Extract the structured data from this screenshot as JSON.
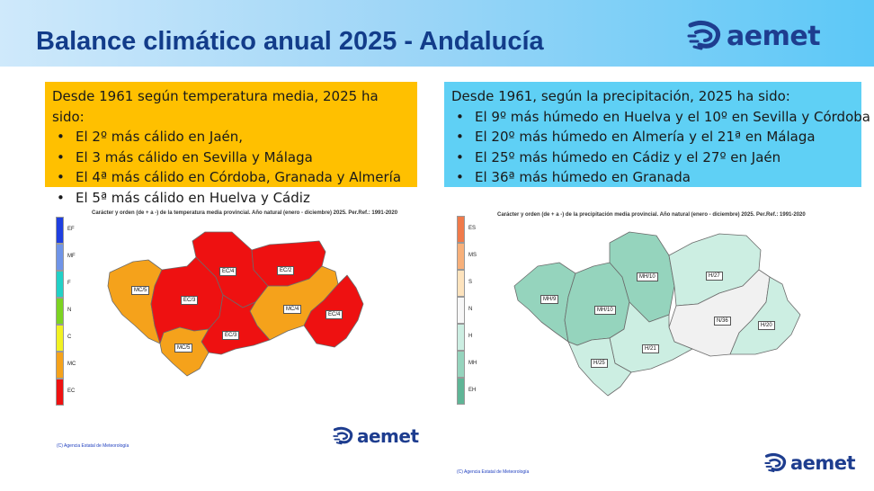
{
  "header": {
    "title": "Balance climático anual 2025 - Andalucía",
    "logo_text": "aemet"
  },
  "temperature_box": {
    "intro": "Desde 1961 según temperatura media, 2025 ha sido:",
    "items": [
      "El 2º más cálido en Jaén,",
      "El 3 más cálido en Sevilla y Málaga",
      "El 4ª más cálido en Córdoba, Granada y Almería",
      "El 5ª más cálido en Huelva y Cádiz"
    ],
    "bg_color": "#ffc000"
  },
  "precipitation_box": {
    "intro": "Desde 1961, según la precipitación, 2025 ha sido:",
    "items": [
      "El 9º más húmedo en Huelva y el 10º en Sevilla y Córdoba",
      "El 20º más húmedo en Almería y el 21ª en Málaga",
      "El 25º más húmedo en Cádiz y el 27º en Jaén",
      "El 36ª más húmedo en Granada"
    ],
    "bg_color": "#5fd0f5"
  },
  "temperature_map": {
    "title": "Carácter y orden (de + a -) de la temperatura media provincial. Año natural (enero - diciembre) 2025. Per.Ref.: 1991-2020",
    "legend": [
      {
        "code": "EF",
        "color": "#1f3fe0"
      },
      {
        "code": "MF",
        "color": "#6f94e8"
      },
      {
        "code": "F",
        "color": "#22d1c7"
      },
      {
        "code": "N",
        "color": "#7cd322"
      },
      {
        "code": "C",
        "color": "#f2f222"
      },
      {
        "code": "MC",
        "color": "#f5a21b"
      },
      {
        "code": "EC",
        "color": "#ee1111"
      }
    ],
    "provinces": {
      "huelva": {
        "label": "MC/5",
        "color": "#f5a21b"
      },
      "sevilla": {
        "label": "EC/3",
        "color": "#ee1111"
      },
      "cordoba": {
        "label": "EC/4",
        "color": "#ee1111"
      },
      "jaen": {
        "label": "EC/2",
        "color": "#ee1111"
      },
      "granada": {
        "label": "MC/4",
        "color": "#f5a21b"
      },
      "almeria": {
        "label": "EC/4",
        "color": "#ee1111"
      },
      "malaga": {
        "label": "EC/3",
        "color": "#ee1111"
      },
      "cadiz": {
        "label": "MC/5",
        "color": "#f5a21b"
      }
    },
    "credit": "(C) Agencia Estatal de Meteorología",
    "logo_text": "aemet"
  },
  "precipitation_map": {
    "title": "Carácter y orden (de + a -) de la precipitación media provincial. Año natural (enero - diciembre) 2025. Per.Ref.: 1991-2020",
    "legend": [
      {
        "code": "ES",
        "color": "#f07a4a"
      },
      {
        "code": "MS",
        "color": "#f7b07a"
      },
      {
        "code": "S",
        "color": "#fde3bd"
      },
      {
        "code": "N",
        "color": "#f7f7f7"
      },
      {
        "code": "H",
        "color": "#cceee2"
      },
      {
        "code": "MH",
        "color": "#95d4bd"
      },
      {
        "code": "EH",
        "color": "#5fb596"
      }
    ],
    "provinces": {
      "huelva": {
        "label": "MH/9",
        "color": "#95d4bd"
      },
      "sevilla": {
        "label": "MH/10",
        "color": "#95d4bd"
      },
      "cordoba": {
        "label": "MH/10",
        "color": "#95d4bd"
      },
      "jaen": {
        "label": "H/27",
        "color": "#cceee2"
      },
      "granada": {
        "label": "N/36",
        "color": "#f1f1f1"
      },
      "almeria": {
        "label": "H/20",
        "color": "#cceee2"
      },
      "malaga": {
        "label": "H/21",
        "color": "#cceee2"
      },
      "cadiz": {
        "label": "H/25",
        "color": "#cceee2"
      }
    },
    "credit": "(C) Agencia Estatal de Meteorología"
  },
  "footer": {
    "logo_text": "aemet"
  }
}
